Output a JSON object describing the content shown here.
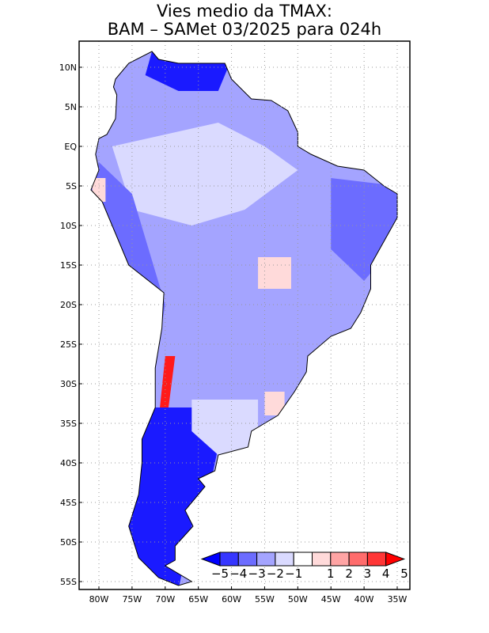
{
  "title": {
    "line1": "Vies medio da TMAX:",
    "line2": "BAM – SAMet 03/2025  para 024h"
  },
  "axes": {
    "lat_labels": [
      "10N",
      "5N",
      "EQ",
      "5S",
      "10S",
      "15S",
      "20S",
      "25S",
      "30S",
      "35S",
      "40S",
      "45S",
      "50S",
      "55S"
    ],
    "lat_values": [
      10,
      5,
      0,
      -5,
      -10,
      -15,
      -20,
      -25,
      -30,
      -35,
      -40,
      -45,
      -50,
      -55
    ],
    "lon_labels": [
      "80W",
      "75W",
      "70W",
      "65W",
      "60W",
      "55W",
      "50W",
      "45W",
      "40W",
      "35W"
    ],
    "lon_values": [
      -80,
      -75,
      -70,
      -65,
      -60,
      -55,
      -50,
      -45,
      -40,
      -35
    ]
  },
  "colorbar": {
    "labels": [
      "−5",
      "−4",
      "−3",
      "−2",
      "−1",
      "1",
      "2",
      "3",
      "4",
      "5"
    ],
    "colors": [
      "#3636ff",
      "#6c6cff",
      "#a4a4ff",
      "#dadaff",
      "#ffffff",
      "#ffdada",
      "#ffa4a4",
      "#ff6c6c",
      "#ff3636"
    ],
    "low_arrow": "#0000ff",
    "high_arrow": "#ff0000"
  },
  "map_colors": {
    "land_base": "#a4a4ff",
    "strong_cold": "#1a1aff",
    "cold": "#6c6cff",
    "mild": "#dadaff",
    "warm": "#ffdada",
    "hot": "#ff1a1a"
  }
}
